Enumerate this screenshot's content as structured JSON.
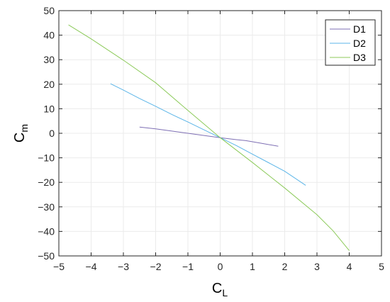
{
  "chart_data": {
    "type": "line",
    "xlabel": {
      "main": "C",
      "sub": "L"
    },
    "ylabel": {
      "main": "C",
      "sub": "m"
    },
    "xlim": [
      -5,
      5
    ],
    "ylim": [
      -50,
      50
    ],
    "xticks": [
      -5,
      -4,
      -3,
      -2,
      -1,
      0,
      1,
      2,
      3,
      4,
      5
    ],
    "yticks": [
      -50,
      -40,
      -30,
      -20,
      -10,
      0,
      10,
      20,
      30,
      40,
      50
    ],
    "xtick_labels": [
      "−5",
      "−4",
      "−3",
      "−2",
      "−1",
      "0",
      "1",
      "2",
      "3",
      "4",
      "5"
    ],
    "ytick_labels": [
      "−50",
      "−40",
      "−30",
      "−20",
      "−10",
      "0",
      "10",
      "20",
      "30",
      "40",
      "50"
    ],
    "grid": true,
    "legend_position": "top-right",
    "series": [
      {
        "name": "D1",
        "color": "#7e6fb4",
        "x": [
          -2.5,
          -2.0,
          -1.5,
          -1.0,
          -0.5,
          0.0,
          0.5,
          0.8,
          1.2,
          1.8
        ],
        "y": [
          2.5,
          1.8,
          0.9,
          0.0,
          -0.9,
          -1.8,
          -2.6,
          -3.0,
          -3.9,
          -5.3
        ]
      },
      {
        "name": "D2",
        "color": "#5bb5e8",
        "x": [
          -3.4,
          -3.0,
          -2.5,
          -2.0,
          -1.5,
          -1.0,
          -0.5,
          0.0,
          0.5,
          1.0,
          1.5,
          2.0,
          2.65
        ],
        "y": [
          20.2,
          17.6,
          14.2,
          11.0,
          7.7,
          4.6,
          1.4,
          -1.8,
          -5.0,
          -8.5,
          -12.0,
          -15.5,
          -21.2
        ]
      },
      {
        "name": "D3",
        "color": "#8cca5a",
        "x": [
          -4.7,
          -4.0,
          -3.0,
          -2.0,
          -1.0,
          0.0,
          1.0,
          2.0,
          3.0,
          3.5,
          4.0
        ],
        "y": [
          44.2,
          38.5,
          29.8,
          20.6,
          9.3,
          -1.8,
          -11.9,
          -22.3,
          -33.2,
          -39.8,
          -47.8
        ]
      }
    ]
  }
}
